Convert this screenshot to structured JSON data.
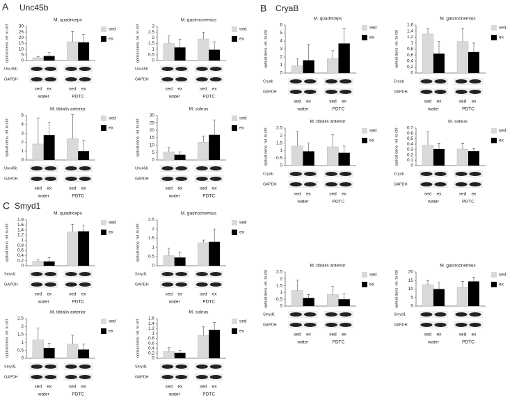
{
  "panels": [
    {
      "letter": "A",
      "title": "Unc45b"
    },
    {
      "letter": "B",
      "title": "CryaB"
    },
    {
      "letter": "C",
      "title": "Smyd1"
    }
  ],
  "chart_data": [
    {
      "type": "bar",
      "title": "M. quadriceps",
      "ylabel": "optical dens. rel. to ctrl",
      "categories": [
        "water",
        "PDTC"
      ],
      "series": [
        {
          "name": "sed",
          "color": "#d9d9d9",
          "values": [
            2.5,
            16.5
          ],
          "errors": [
            1,
            9
          ]
        },
        {
          "name": "ex",
          "color": "#000000",
          "values": [
            4,
            16
          ],
          "errors": [
            3,
            7
          ]
        }
      ],
      "ylim": [
        0,
        30
      ],
      "yticks": [
        0,
        5,
        10,
        15,
        20,
        25,
        30
      ],
      "blot_labels": [
        "Unc45b",
        "GAPDH"
      ],
      "lanes": [
        "sed",
        "ex",
        "sed",
        "ex"
      ]
    },
    {
      "type": "bar",
      "title": "M. gastrocnemius",
      "ylabel": "optical dens. rel. to ctrl",
      "categories": [
        "water",
        "PDTC"
      ],
      "series": [
        {
          "name": "sed",
          "color": "#d9d9d9",
          "values": [
            1.5,
            1.9
          ],
          "errors": [
            0.7,
            0.6
          ]
        },
        {
          "name": "ex",
          "color": "#000000",
          "values": [
            1.15,
            0.95
          ],
          "errors": [
            0.7,
            0.7
          ]
        }
      ],
      "ylim": [
        0,
        3
      ],
      "yticks": [
        0,
        0.5,
        1,
        1.5,
        2,
        2.5,
        3
      ],
      "blot_labels": [
        "Unc45b",
        "GAPDH"
      ],
      "lanes": [
        "sed",
        "ex",
        "sed",
        "ex"
      ]
    },
    {
      "type": "bar",
      "title": "M. tibialis anterior",
      "ylabel": "optical dens. rel. to ctrl",
      "categories": [
        "water",
        "PDTC"
      ],
      "series": [
        {
          "name": "sed",
          "color": "#d9d9d9",
          "values": [
            1.8,
            2.4
          ],
          "errors": [
            2.9,
            2.7
          ]
        },
        {
          "name": "ex",
          "color": "#000000",
          "values": [
            2.8,
            1
          ],
          "errors": [
            1.4,
            1.2
          ]
        }
      ],
      "ylim": [
        0,
        5
      ],
      "yticks": [
        0,
        1,
        2,
        3,
        4,
        5
      ],
      "blot_labels": [
        "Unc45b",
        "GAPDH"
      ],
      "lanes": [
        "sed",
        "ex",
        "sed",
        "ex"
      ]
    },
    {
      "type": "bar",
      "title": "M. soleus",
      "ylabel": "optical dens. rel. to ctrl",
      "categories": [
        "water",
        "PDTC"
      ],
      "series": [
        {
          "name": "sed",
          "color": "#d9d9d9",
          "values": [
            5.5,
            12
          ],
          "errors": [
            3,
            4
          ]
        },
        {
          "name": "ex",
          "color": "#000000",
          "values": [
            3.5,
            17
          ],
          "errors": [
            2,
            10
          ]
        }
      ],
      "ylim": [
        0,
        30
      ],
      "yticks": [
        0,
        5,
        10,
        15,
        20,
        25,
        30
      ],
      "blot_labels": [
        "Unc45b",
        "GAPDH"
      ],
      "lanes": [
        "sed",
        "ex",
        "sed",
        "ex"
      ]
    },
    {
      "type": "bar",
      "title": "M. quadriceps",
      "ylabel": "optical dens. rel. to ctrl",
      "categories": [
        "water",
        "PDTC"
      ],
      "series": [
        {
          "name": "sed",
          "color": "#d9d9d9",
          "values": [
            0.9,
            1.8
          ],
          "errors": [
            0.9,
            1
          ]
        },
        {
          "name": "ex",
          "color": "#000000",
          "values": [
            1.6,
            3.7
          ],
          "errors": [
            2,
            1.9
          ]
        }
      ],
      "ylim": [
        0,
        6
      ],
      "yticks": [
        0,
        1,
        2,
        3,
        4,
        5,
        6
      ],
      "blot_labels": [
        "Cryab",
        "GAPDH"
      ],
      "lanes": [
        "sed",
        "ex",
        "sed",
        "ex"
      ]
    },
    {
      "type": "bar",
      "title": "M. gastrocnemius",
      "ylabel": "optical dens. rel. to ctrl",
      "categories": [
        "water",
        "PDTC"
      ],
      "series": [
        {
          "name": "sed",
          "color": "#d9d9d9",
          "values": [
            1.3,
            1.05
          ],
          "errors": [
            0.2,
            0.45
          ]
        },
        {
          "name": "ex",
          "color": "#000000",
          "values": [
            0.65,
            0.7
          ],
          "errors": [
            0.4,
            0.3
          ]
        }
      ],
      "ylim": [
        0,
        1.6
      ],
      "yticks": [
        0,
        {
          "value": 0.2,
          "label": "0,2"
        },
        {
          "value": 0.4,
          "label": "0,4"
        },
        {
          "value": 0.6,
          "label": "0,6"
        },
        {
          "value": 0.8,
          "label": "0,8"
        },
        1,
        {
          "value": 1.2,
          "label": "1,2"
        },
        {
          "value": 1.4,
          "label": "1,4"
        },
        {
          "value": 1.6,
          "label": "1,6"
        }
      ],
      "blot_labels": [
        "Cryab",
        "GAPDH"
      ],
      "lanes": [
        "sed",
        "ex",
        "sed",
        "ex"
      ]
    },
    {
      "type": "bar",
      "title": "M. tibialis anterior",
      "ylabel": "optical dens. rel. to ctrl",
      "categories": [
        "water",
        "PDTC"
      ],
      "series": [
        {
          "name": "sed",
          "color": "#d9d9d9",
          "values": [
            1.3,
            1.25
          ],
          "errors": [
            0.95,
            0.8
          ]
        },
        {
          "name": "ex",
          "color": "#000000",
          "values": [
            0.95,
            0.85
          ],
          "errors": [
            0.55,
            0.45
          ]
        }
      ],
      "ylim": [
        0,
        2.5
      ],
      "yticks": [
        0,
        0.5,
        1,
        1.5,
        2,
        2.5
      ],
      "blot_labels": [
        "Cryab",
        "GAPDH"
      ],
      "lanes": [
        "sed",
        "ex",
        "sed",
        "ex"
      ]
    },
    {
      "type": "bar",
      "title": "M. soleus",
      "ylabel": "optical dens. rel. to ctrl",
      "categories": [
        "water",
        "PDTC"
      ],
      "series": [
        {
          "name": "sed",
          "color": "#d9d9d9",
          "values": [
            0.38,
            0.31
          ],
          "errors": [
            0.25,
            0.1
          ]
        },
        {
          "name": "ex",
          "color": "#000000",
          "values": [
            0.31,
            0.27
          ],
          "errors": [
            0.1,
            0.05
          ]
        }
      ],
      "ylim": [
        0,
        0.7
      ],
      "yticks": [
        0,
        0.1,
        0.2,
        0.3,
        0.4,
        0.5,
        0.6,
        0.7
      ],
      "blot_labels": [
        "Cryab",
        "GAPDH"
      ],
      "lanes": [
        "sed",
        "ex",
        "sed",
        "ex"
      ]
    },
    {
      "type": "bar",
      "title": "M. quadriceps",
      "ylabel": "optical dens. rel. to ctrl",
      "categories": [
        "water",
        "PDTC"
      ],
      "series": [
        {
          "name": "sed",
          "color": "#d9d9d9",
          "values": [
            0.17,
            1.33
          ],
          "errors": [
            0.08,
            0.3
          ]
        },
        {
          "name": "ex",
          "color": "#000000",
          "values": [
            0.17,
            1.35
          ],
          "errors": [
            0.15,
            0.25
          ]
        }
      ],
      "ylim": [
        0,
        1.8
      ],
      "yticks": [
        0,
        0.2,
        0.4,
        0.6,
        0.8,
        1,
        1.2,
        1.4,
        1.6,
        1.8
      ],
      "blot_labels": [
        "Smyd1",
        "GAPDH"
      ],
      "lanes": [
        "sed",
        "ex",
        "sed",
        "ex"
      ]
    },
    {
      "type": "bar",
      "title": "M. gastrocnemius",
      "ylabel": "optical dens. rel. to ctrl",
      "categories": [
        "water",
        "PDTC"
      ],
      "series": [
        {
          "name": "sed",
          "color": "#d9d9d9",
          "values": [
            0.55,
            1.25
          ],
          "errors": [
            0.4,
            0.15
          ]
        },
        {
          "name": "ex",
          "color": "#000000",
          "values": [
            0.45,
            1.3
          ],
          "errors": [
            0.3,
            0.7
          ]
        }
      ],
      "ylim": [
        0,
        2.5
      ],
      "yticks": [
        0,
        0.5,
        1,
        1.5,
        2,
        2.5
      ],
      "blot_labels": [
        "Smyd1",
        "GAPDH"
      ],
      "lanes": [
        "sed",
        "ex",
        "sed",
        "ex"
      ]
    },
    {
      "type": "bar",
      "title": "M. tibialis anterior",
      "ylabel": "optical dens. rel. to ctrl",
      "categories": [
        "water",
        "PDTC"
      ],
      "series": [
        {
          "name": "sed",
          "color": "#d9d9d9",
          "values": [
            1.15,
            0.9
          ],
          "errors": [
            0.75,
            0.55
          ]
        },
        {
          "name": "ex",
          "color": "#000000",
          "values": [
            0.65,
            0.55
          ],
          "errors": [
            0.3,
            0.35
          ]
        }
      ],
      "ylim": [
        0,
        2.5
      ],
      "yticks": [
        0,
        0.5,
        1,
        1.5,
        2,
        2.5
      ],
      "blot_labels": [
        "Smyd1",
        "GAPDH"
      ],
      "lanes": [
        "sed",
        "ex",
        "sed",
        "ex"
      ]
    },
    {
      "type": "bar",
      "title": "M. soleus",
      "ylabel": "optical dens. rel. to ctrl",
      "categories": [
        "water",
        "PDTC"
      ],
      "series": [
        {
          "name": "sed",
          "color": "#d9d9d9",
          "values": [
            0.28,
            0.92
          ],
          "errors": [
            0.15,
            0.35
          ]
        },
        {
          "name": "ex",
          "color": "#000000",
          "values": [
            0.22,
            1.15
          ],
          "errors": [
            0.1,
            0.3
          ]
        }
      ],
      "ylim": [
        0,
        1.6
      ],
      "yticks": [
        0,
        0.2,
        0.4,
        0.6,
        0.8,
        1,
        1.2,
        1.4,
        1.6
      ],
      "blot_labels": [
        "Smyd1",
        "GAPDH"
      ],
      "lanes": [
        "sed",
        "ex",
        "sed",
        "ex"
      ]
    },
    {
      "type": "bar",
      "title": "M. tibialis anterior",
      "ylabel": "optical dens. rel. to ctrl",
      "categories": [
        "water",
        "PDTC"
      ],
      "series": [
        {
          "name": "sed",
          "color": "#d9d9d9",
          "values": [
            1.15,
            0.85
          ],
          "errors": [
            0.75,
            0.6
          ]
        },
        {
          "name": "ex",
          "color": "#000000",
          "values": [
            0.6,
            0.5
          ],
          "errors": [
            0.25,
            0.4
          ]
        }
      ],
      "ylim": [
        0,
        2.5
      ],
      "yticks": [
        0,
        0.5,
        1,
        1.5,
        2,
        2.5
      ],
      "blot_labels": [
        "Smyd1",
        "GAPDH"
      ],
      "lanes": [
        "sed",
        "ex",
        "sed",
        "ex"
      ]
    },
    {
      "type": "bar",
      "title": "M. gastrocnemius",
      "ylabel": "optical dens. rel. to ctrl",
      "categories": [
        "water",
        "PDTC"
      ],
      "series": [
        {
          "name": "sed",
          "color": "#d9d9d9",
          "values": [
            12.5,
            11
          ],
          "errors": [
            2.5,
            3.5
          ]
        },
        {
          "name": "ex",
          "color": "#000000",
          "values": [
            10,
            14.5
          ],
          "errors": [
            4,
            2.5
          ]
        }
      ],
      "ylim": [
        0,
        20
      ],
      "yticks": [
        0,
        5,
        10,
        15,
        20
      ],
      "blot_labels": [
        "Smyd1",
        "GAPDH"
      ],
      "lanes": [
        "sed",
        "ex",
        "sed",
        "ex"
      ]
    }
  ]
}
